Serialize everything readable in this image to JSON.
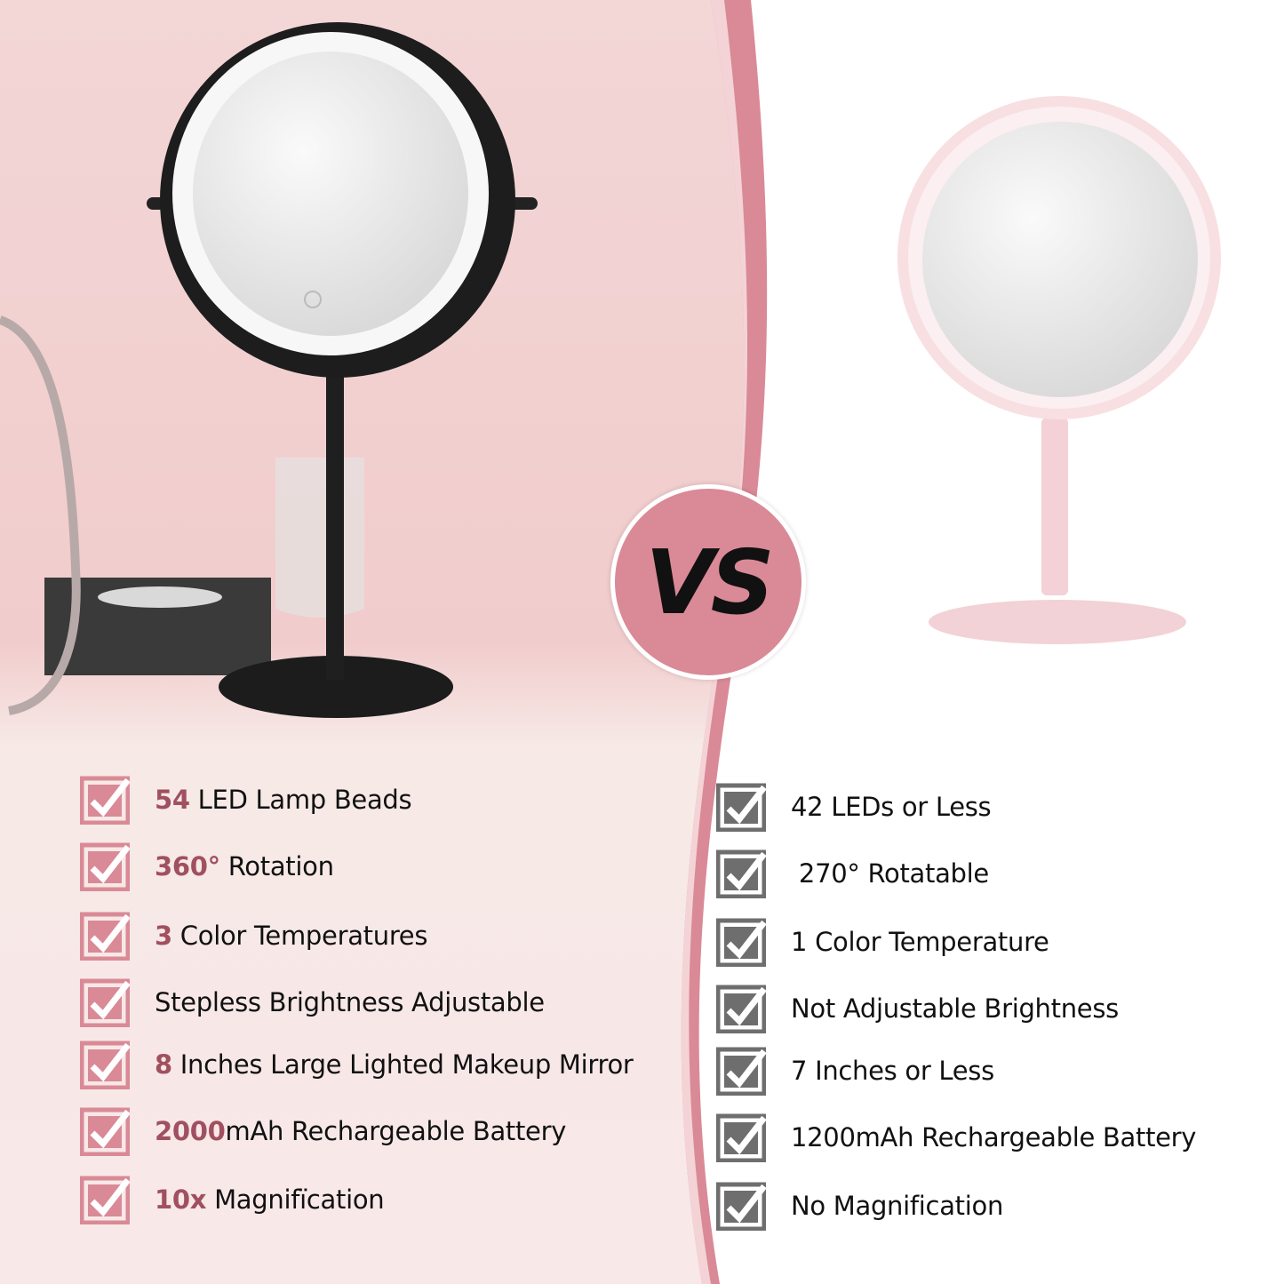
{
  "vs_label": "VS",
  "colors": {
    "accent": "#d98a96",
    "highlight": "#a0505f",
    "left_check": "#d98a96",
    "right_check": "#6e6e6e"
  },
  "left": {
    "items": [
      {
        "highlight": "54",
        "text": " LED Lamp Beads"
      },
      {
        "highlight": "360°",
        "text": " Rotation"
      },
      {
        "highlight": "3",
        "text": " Color Temperatures"
      },
      {
        "highlight": "",
        "text": "Stepless Brightness Adjustable"
      },
      {
        "highlight": "8",
        "text": " Inches Large Lighted Makeup Mirror"
      },
      {
        "highlight": "2000",
        "text": "mAh Rechargeable Battery"
      },
      {
        "highlight": "10x",
        "text": " Magnifïcation"
      }
    ]
  },
  "right": {
    "items": [
      {
        "text": "42 LEDs or Less"
      },
      {
        "text": " 270° Rotatable"
      },
      {
        "text": "1 Color Temperature"
      },
      {
        "text": "Not Adjustable Brightness"
      },
      {
        "text": "7 Inches or Less"
      },
      {
        "text": "1200mAh Rechargeable Battery"
      },
      {
        "text": "No Magnification"
      }
    ]
  }
}
